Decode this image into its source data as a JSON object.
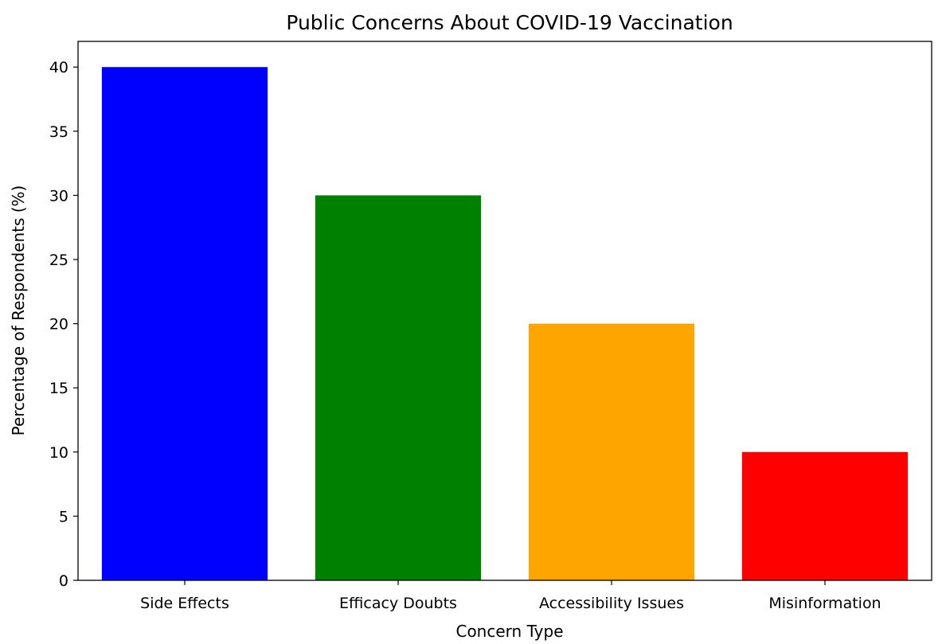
{
  "chart_data": {
    "type": "bar",
    "title": "Public Concerns About COVID-19 Vaccination",
    "xlabel": "Concern Type",
    "ylabel": "Percentage of Respondents (%)",
    "categories": [
      "Side Effects",
      "Efficacy Doubts",
      "Accessibility Issues",
      "Misinformation"
    ],
    "values": [
      40,
      30,
      20,
      10
    ],
    "colors": [
      "#0000ff",
      "#008000",
      "#ffa500",
      "#ff0000"
    ],
    "ylim": [
      0,
      42
    ],
    "yticks": [
      0,
      5,
      10,
      15,
      20,
      25,
      30,
      35,
      40
    ],
    "grid": false,
    "legend": false
  }
}
